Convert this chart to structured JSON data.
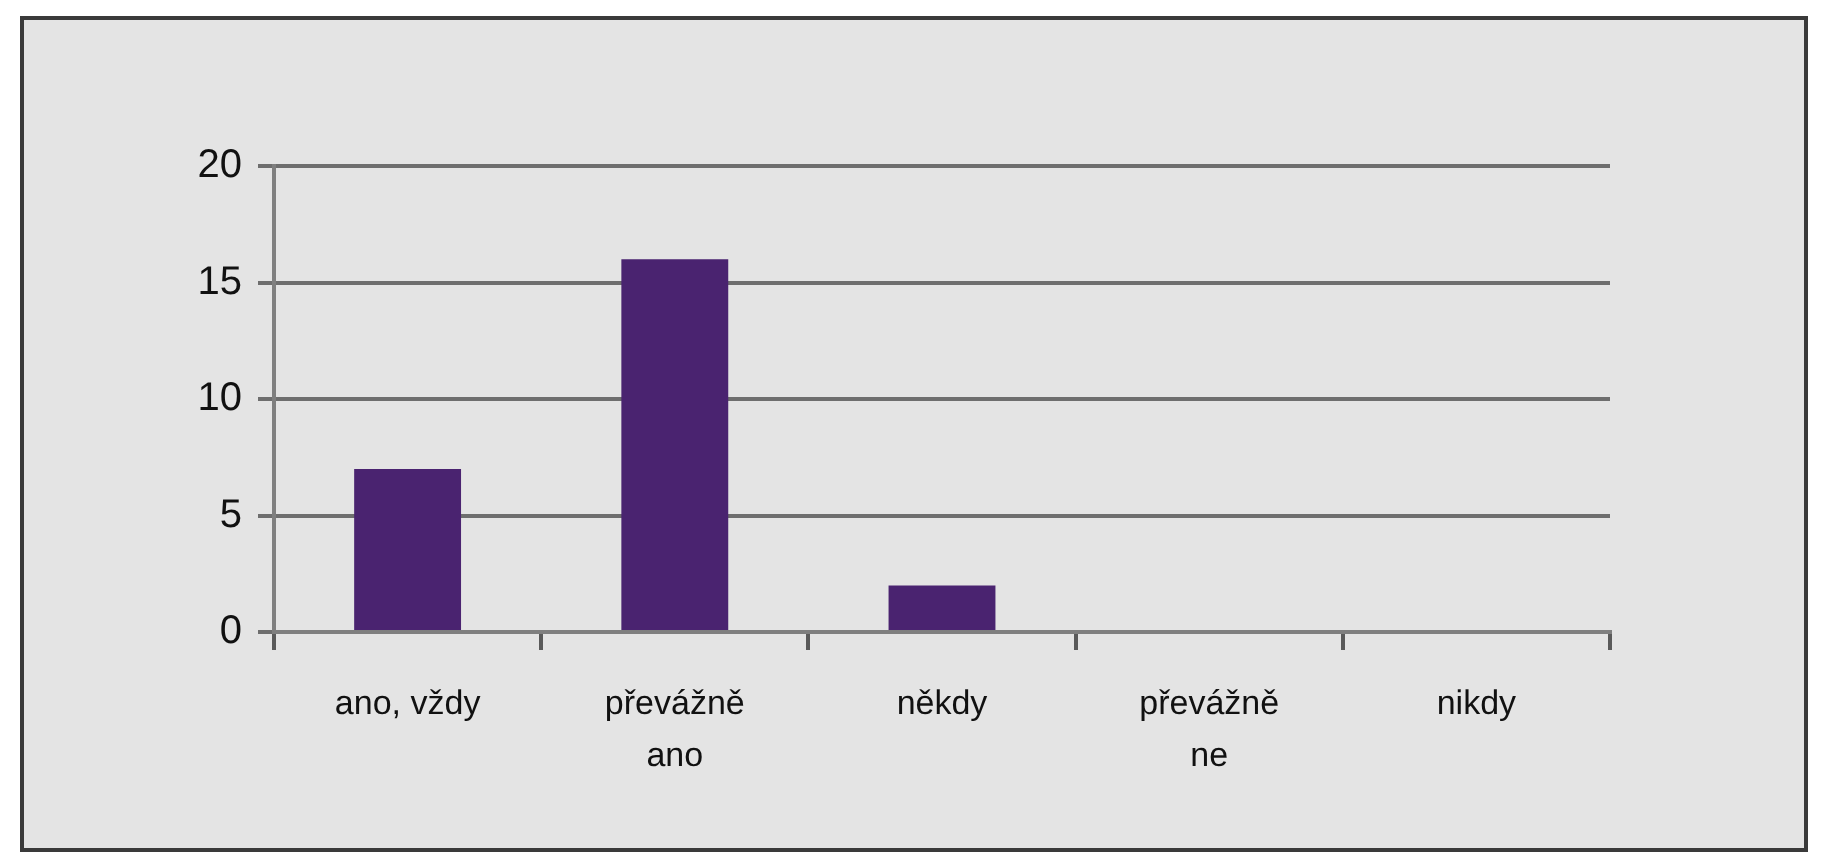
{
  "chart_data": {
    "type": "bar",
    "categories": [
      "ano, vždy",
      "převážně ano",
      "někdy",
      "převážně ne",
      "nikdy"
    ],
    "values": [
      7,
      16,
      2,
      0,
      0
    ],
    "color": "#4a2370",
    "ylim": [
      0,
      20
    ],
    "yticks": [
      0,
      5,
      10,
      15,
      20
    ],
    "grid": "y"
  }
}
